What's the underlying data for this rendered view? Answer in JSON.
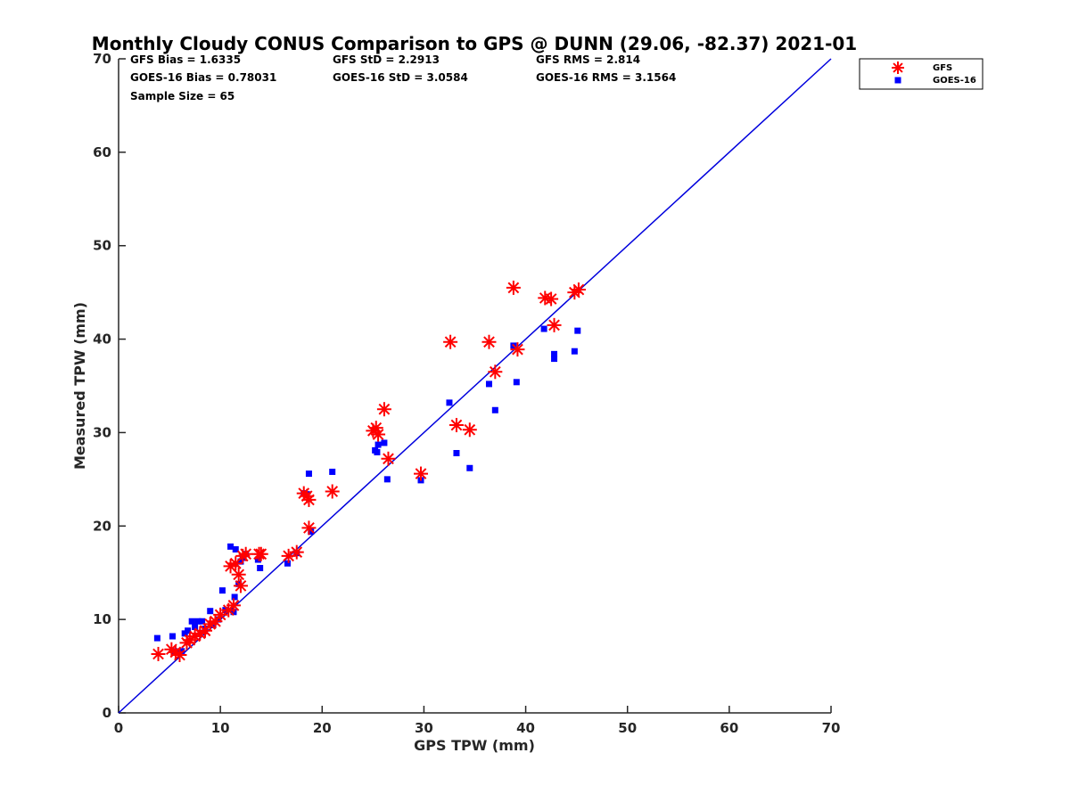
{
  "chart_data": {
    "type": "scatter",
    "title": "Monthly Cloudy CONUS Comparison to GPS @ DUNN (29.06, -82.37) 2021-01",
    "xlabel": "GPS TPW (mm)",
    "ylabel": "Measured TPW (mm)",
    "xlim": [
      0,
      70
    ],
    "ylim": [
      0,
      70
    ],
    "xticks": [
      0,
      10,
      20,
      30,
      40,
      50,
      60,
      70
    ],
    "yticks": [
      0,
      10,
      20,
      30,
      40,
      50,
      60,
      70
    ],
    "grid": false,
    "legend_position": "top-right",
    "reference_line": {
      "x": [
        0,
        70
      ],
      "y": [
        0,
        70
      ],
      "color": "#0000dd"
    },
    "stats": [
      [
        "GFS Bias = 1.6335",
        "GFS StD = 2.2913",
        "GFS RMS = 2.814"
      ],
      [
        "GOES-16 Bias = 0.78031",
        "GOES-16 StD = 3.0584",
        "GOES-16 RMS = 3.1564"
      ],
      [
        "Sample Size = 65"
      ]
    ],
    "series": [
      {
        "name": "GFS",
        "marker": "asterisk",
        "color": "#ff0000",
        "points": [
          [
            3.9,
            6.3
          ],
          [
            5.2,
            6.8
          ],
          [
            5.6,
            6.5
          ],
          [
            6.0,
            6.2
          ],
          [
            6.7,
            7.5
          ],
          [
            7.0,
            7.8
          ],
          [
            7.5,
            8.2
          ],
          [
            8.0,
            8.5
          ],
          [
            8.5,
            8.8
          ],
          [
            9.0,
            9.5
          ],
          [
            9.5,
            9.8
          ],
          [
            10.0,
            10.5
          ],
          [
            10.8,
            11.0
          ],
          [
            11.3,
            11.5
          ],
          [
            11.0,
            15.7
          ],
          [
            11.5,
            16.0
          ],
          [
            11.8,
            14.8
          ],
          [
            12.0,
            13.6
          ],
          [
            12.2,
            16.8
          ],
          [
            12.5,
            17.0
          ],
          [
            13.8,
            17.0
          ],
          [
            14.0,
            17.0
          ],
          [
            16.7,
            16.8
          ],
          [
            17.5,
            17.2
          ],
          [
            18.2,
            23.5
          ],
          [
            18.5,
            23.2
          ],
          [
            18.7,
            22.8
          ],
          [
            18.7,
            19.8
          ],
          [
            21.0,
            23.7
          ],
          [
            25.0,
            30.2
          ],
          [
            25.3,
            30.5
          ],
          [
            25.5,
            29.8
          ],
          [
            26.1,
            32.5
          ],
          [
            26.5,
            27.2
          ],
          [
            29.7,
            25.6
          ],
          [
            32.6,
            39.7
          ],
          [
            33.2,
            30.8
          ],
          [
            34.5,
            30.3
          ],
          [
            36.4,
            39.7
          ],
          [
            37.0,
            36.5
          ],
          [
            38.8,
            45.5
          ],
          [
            39.2,
            38.9
          ],
          [
            41.9,
            44.4
          ],
          [
            42.5,
            44.3
          ],
          [
            42.8,
            41.5
          ],
          [
            44.8,
            45.0
          ],
          [
            45.2,
            45.3
          ]
        ]
      },
      {
        "name": "GOES-16",
        "marker": "square",
        "color": "#0000ff",
        "points": [
          [
            3.8,
            8.0
          ],
          [
            5.3,
            8.2
          ],
          [
            5.5,
            6.6
          ],
          [
            6.0,
            6.5
          ],
          [
            6.2,
            6.6
          ],
          [
            6.5,
            8.5
          ],
          [
            6.8,
            8.8
          ],
          [
            7.2,
            9.8
          ],
          [
            7.5,
            9.2
          ],
          [
            7.8,
            9.8
          ],
          [
            8.2,
            9.8
          ],
          [
            8.5,
            9.0
          ],
          [
            9.0,
            10.9
          ],
          [
            9.3,
            9.4
          ],
          [
            9.8,
            10.0
          ],
          [
            10.2,
            13.1
          ],
          [
            10.5,
            11.0
          ],
          [
            11.0,
            17.8
          ],
          [
            11.3,
            10.8
          ],
          [
            11.4,
            12.4
          ],
          [
            11.5,
            17.5
          ],
          [
            11.8,
            13.8
          ],
          [
            12.0,
            16.2
          ],
          [
            12.2,
            16.6
          ],
          [
            12.5,
            17.0
          ],
          [
            13.7,
            16.4
          ],
          [
            13.9,
            15.5
          ],
          [
            16.6,
            16.0
          ],
          [
            17.5,
            17.1
          ],
          [
            18.2,
            23.5
          ],
          [
            18.5,
            23.4
          ],
          [
            18.7,
            25.6
          ],
          [
            18.9,
            19.4
          ],
          [
            21.0,
            25.8
          ],
          [
            25.2,
            28.1
          ],
          [
            25.4,
            27.9
          ],
          [
            25.5,
            28.7
          ],
          [
            26.1,
            28.9
          ],
          [
            26.4,
            25.0
          ],
          [
            29.7,
            24.9
          ],
          [
            32.5,
            33.2
          ],
          [
            33.2,
            27.8
          ],
          [
            34.5,
            26.2
          ],
          [
            36.4,
            35.2
          ],
          [
            37.0,
            32.4
          ],
          [
            38.8,
            39.3
          ],
          [
            39.1,
            35.4
          ],
          [
            41.8,
            41.1
          ],
          [
            42.8,
            38.4
          ],
          [
            42.8,
            37.9
          ],
          [
            44.8,
            38.7
          ],
          [
            45.1,
            40.9
          ]
        ]
      }
    ]
  }
}
